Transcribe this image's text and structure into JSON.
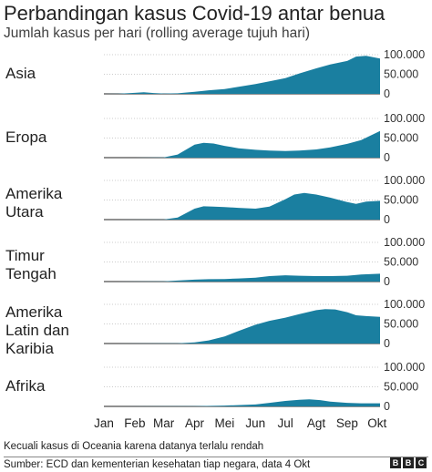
{
  "title": "Perbandingan kasus Covid-19 antar benua",
  "subtitle": "Jumlah kasus per hari (rolling average tujuh hari)",
  "footnote": "Kecuali kasus di Oceania karena datanya terlalu rendah",
  "source": "Sumber: ECD dan kementerian kesehatan tiap negara, data 4 Okt",
  "logo_letters": [
    "B",
    "B",
    "C"
  ],
  "colors": {
    "area": "#1a7fa0",
    "grid": "#cccccc",
    "axis": "#222222",
    "label": "#333333"
  },
  "chart_data": [
    {
      "type": "area",
      "label_lines": [
        "Asia"
      ],
      "ylim": [
        0,
        100000
      ],
      "yticks": [
        "100.000",
        "50.000",
        "0"
      ],
      "x": [
        "Jan 1",
        "Jan 15",
        "Feb 1",
        "Feb 10",
        "Feb 20",
        "Mar 1",
        "Mar 15",
        "Apr 1",
        "Apr 15",
        "May 1",
        "May 15",
        "Jun 1",
        "Jun 15",
        "Jul 1",
        "Jul 15",
        "Aug 1",
        "Aug 15",
        "Sep 1",
        "Sep 10",
        "Sep 20",
        "Oct 4"
      ],
      "values": [
        0,
        200,
        2500,
        4000,
        2000,
        1000,
        1500,
        5000,
        9000,
        12000,
        18000,
        25000,
        32000,
        40000,
        52000,
        65000,
        75000,
        84000,
        95000,
        97000,
        90000
      ]
    },
    {
      "type": "area",
      "label_lines": [
        "Eropa"
      ],
      "ylim": [
        0,
        100000
      ],
      "yticks": [
        "100.000",
        "50.000",
        "0"
      ],
      "x": [
        "Jan 1",
        "Feb 1",
        "Mar 1",
        "Mar 15",
        "Apr 1",
        "Apr 10",
        "Apr 20",
        "May 1",
        "May 15",
        "Jun 1",
        "Jun 15",
        "Jul 1",
        "Jul 15",
        "Aug 1",
        "Aug 15",
        "Sep 1",
        "Sep 15",
        "Oct 4"
      ],
      "values": [
        0,
        0,
        500,
        8000,
        33000,
        38000,
        36000,
        30000,
        24000,
        20000,
        18000,
        17000,
        18000,
        21000,
        26000,
        35000,
        45000,
        68000
      ]
    },
    {
      "type": "area",
      "label_lines": [
        "Amerika",
        "Utara"
      ],
      "ylim": [
        0,
        100000
      ],
      "yticks": [
        "100.000",
        "50.000",
        "0"
      ],
      "x": [
        "Jan 1",
        "Mar 1",
        "Mar 15",
        "Apr 1",
        "Apr 10",
        "Apr 20",
        "May 1",
        "May 15",
        "Jun 1",
        "Jun 15",
        "Jul 1",
        "Jul 10",
        "Jul 20",
        "Aug 1",
        "Aug 15",
        "Sep 1",
        "Sep 10",
        "Sep 20",
        "Oct 4"
      ],
      "values": [
        0,
        200,
        5000,
        28000,
        34000,
        33000,
        32000,
        30000,
        28000,
        33000,
        52000,
        64000,
        68000,
        64000,
        56000,
        45000,
        40000,
        46000,
        48000
      ]
    },
    {
      "type": "area",
      "label_lines": [
        "Timur",
        "Tengah"
      ],
      "ylim": [
        0,
        100000
      ],
      "yticks": [
        "100.000",
        "50.000",
        "0"
      ],
      "x": [
        "Jan 1",
        "Mar 1",
        "Mar 15",
        "Apr 1",
        "Apr 15",
        "May 1",
        "May 15",
        "Jun 1",
        "Jun 15",
        "Jul 1",
        "Jul 15",
        "Aug 1",
        "Aug 15",
        "Sep 1",
        "Sep 15",
        "Oct 4"
      ],
      "values": [
        0,
        500,
        2500,
        5000,
        6000,
        6500,
        8000,
        10000,
        14000,
        16000,
        15000,
        14000,
        14000,
        15000,
        18000,
        20000
      ]
    },
    {
      "type": "area",
      "label_lines": [
        "Amerika",
        "Latin dan",
        "Karibia"
      ],
      "ylim": [
        0,
        100000
      ],
      "yticks": [
        "100.000",
        "50.000",
        "0"
      ],
      "x": [
        "Jan 1",
        "Mar 15",
        "Apr 1",
        "Apr 15",
        "May 1",
        "May 15",
        "Jun 1",
        "Jun 15",
        "Jul 1",
        "Jul 15",
        "Aug 1",
        "Aug 10",
        "Aug 20",
        "Sep 1",
        "Sep 10",
        "Sep 20",
        "Oct 4"
      ],
      "values": [
        0,
        500,
        3000,
        8000,
        18000,
        32000,
        48000,
        58000,
        66000,
        75000,
        85000,
        88000,
        87000,
        80000,
        72000,
        70000,
        68000
      ]
    },
    {
      "type": "area",
      "label_lines": [
        "Afrika"
      ],
      "ylim": [
        0,
        100000
      ],
      "yticks": [
        "100.000",
        "50.000",
        "0"
      ],
      "x": [
        "Jan 1",
        "Apr 1",
        "May 1",
        "Jun 1",
        "Jun 15",
        "Jul 1",
        "Jul 15",
        "Jul 25",
        "Aug 5",
        "Aug 15",
        "Sep 1",
        "Sep 15",
        "Oct 4"
      ],
      "values": [
        0,
        500,
        2000,
        5000,
        9000,
        14000,
        17000,
        18000,
        16000,
        12000,
        9000,
        8000,
        8000
      ]
    }
  ],
  "xticks": [
    "Jan",
    "Feb",
    "Mar",
    "Apr",
    "Mei",
    "Jun",
    "Jul",
    "Agt",
    "Sep",
    "Okt"
  ]
}
